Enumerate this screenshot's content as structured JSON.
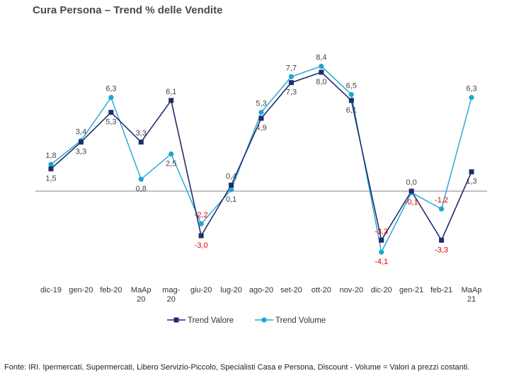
{
  "title": "Cura Persona –  Trend % delle Vendite",
  "footer": "Fonte: IRI. Ipermercati, Supermercati, Libero Servizio-Piccolo,  Specialisti Casa e Persona, Discount -  Volume =  Valori a prezzi  costanti.",
  "colors": {
    "valore": "#1f2d6b",
    "volume": "#1ba6d3",
    "negative": "#e00000",
    "positive": "#444444",
    "zero_line": "#808080"
  },
  "chart_data": {
    "type": "line",
    "title": "Cura Persona –  Trend % delle Vendite",
    "categories": [
      "dic-19",
      "gen-20",
      "feb-20",
      "MaAp 20",
      "mag-20",
      "giu-20",
      "lug-20",
      "ago-20",
      "set-20",
      "ott-20",
      "nov-20",
      "dic-20",
      "gen-21",
      "feb-21",
      "MaAp 21"
    ],
    "category_lines": [
      [
        "dic-19"
      ],
      [
        "gen-20"
      ],
      [
        "feb-20"
      ],
      [
        "MaAp",
        "20"
      ],
      [
        "mag-",
        "20"
      ],
      [
        "giu-20"
      ],
      [
        "lug-20"
      ],
      [
        "ago-20"
      ],
      [
        "set-20"
      ],
      [
        "ott-20"
      ],
      [
        "nov-20"
      ],
      [
        "dic-20"
      ],
      [
        "gen-21"
      ],
      [
        "feb-21"
      ],
      [
        "MaAp",
        "21"
      ]
    ],
    "series": [
      {
        "name": "Trend Valore",
        "values": [
          1.5,
          3.3,
          5.3,
          3.3,
          6.1,
          -3.0,
          0.4,
          4.9,
          7.3,
          8.0,
          6.1,
          -3.3,
          0.0,
          -3.3,
          1.3
        ]
      },
      {
        "name": "Trend Volume",
        "values": [
          1.8,
          3.4,
          6.3,
          0.8,
          2.5,
          -2.2,
          0.1,
          5.3,
          7.7,
          8.4,
          6.5,
          -4.1,
          -0.1,
          -1.2,
          6.3
        ]
      }
    ],
    "data_labels": [
      [
        "1,5",
        "3,3",
        "5,3",
        "3,3",
        "6,1",
        "-3,0",
        "0,4",
        "4,9",
        "7,3",
        "8,0",
        "6,1",
        "-3,3",
        "0,0",
        "-3,3",
        "1,3"
      ],
      [
        "1,8",
        "3,4",
        "6,3",
        "0,8",
        "2,5",
        "-2,2",
        "0,1",
        "5,3",
        "7,7",
        "8,4",
        "6,5",
        "-4,1",
        "-0,1",
        "-1,2",
        "6,3"
      ]
    ],
    "ylim": [
      -6,
      9.5
    ],
    "grid": false,
    "legend": "bottom"
  }
}
